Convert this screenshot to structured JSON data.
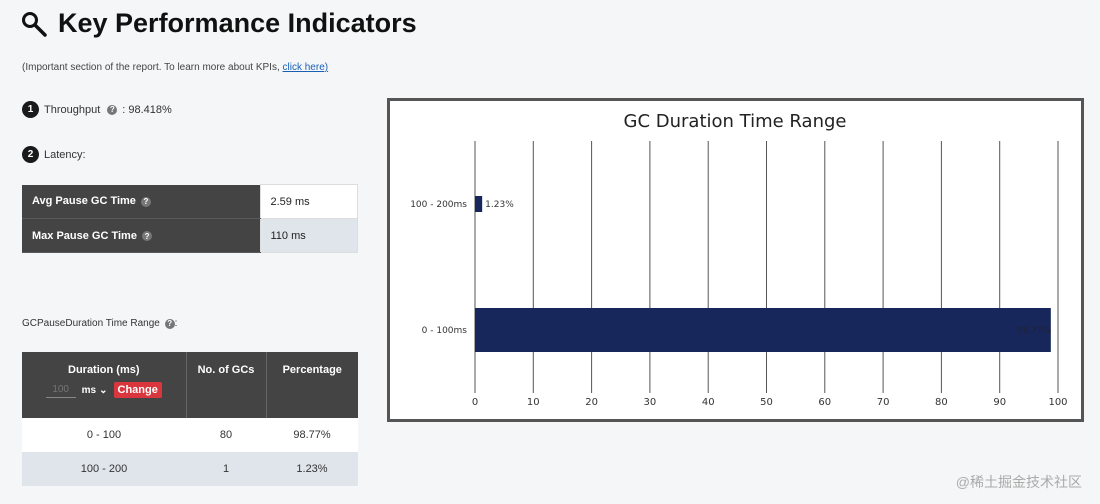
{
  "page": {
    "title": "Key Performance Indicators",
    "subtitle": "(Important section of the report. To learn more about KPIs,",
    "subtitle_link": "click here)"
  },
  "kpi": {
    "throughput_num": "1",
    "throughput_label": "Throughput",
    "throughput_value": ": 98.418%",
    "latency_num": "2",
    "latency_label": "Latency:",
    "latency_rows": [
      {
        "label": "Avg Pause GC Time",
        "value": "2.59 ms"
      },
      {
        "label": "Max Pause GC Time",
        "value": "110 ms"
      }
    ]
  },
  "range_section": {
    "label": "GCPauseDuration Time Range",
    "headers": {
      "duration": "Duration (ms)",
      "count": "No. of GCs",
      "percentage": "Percentage"
    },
    "controls": {
      "input_placeholder": "100",
      "unit": "ms",
      "change": "Change"
    },
    "rows": [
      {
        "range": "0 - 100",
        "count": "80",
        "pct": "98.77%"
      },
      {
        "range": "100 - 200",
        "count": "1",
        "pct": "1.23%"
      }
    ]
  },
  "chart_data": {
    "type": "bar",
    "orientation": "horizontal",
    "title": "GC Duration Time Range",
    "categories": [
      "100 - 200ms",
      "0 - 100ms"
    ],
    "values": [
      1.23,
      98.77
    ],
    "data_labels": [
      "1.23%",
      "98.77%"
    ],
    "xlim": [
      0,
      100
    ],
    "xticks": [
      "0",
      "10",
      "20",
      "30",
      "40",
      "50",
      "60",
      "70",
      "80",
      "90",
      "100"
    ],
    "grid": true,
    "bar_color": "#17275b"
  },
  "watermark": "@稀土掘金技术社区"
}
